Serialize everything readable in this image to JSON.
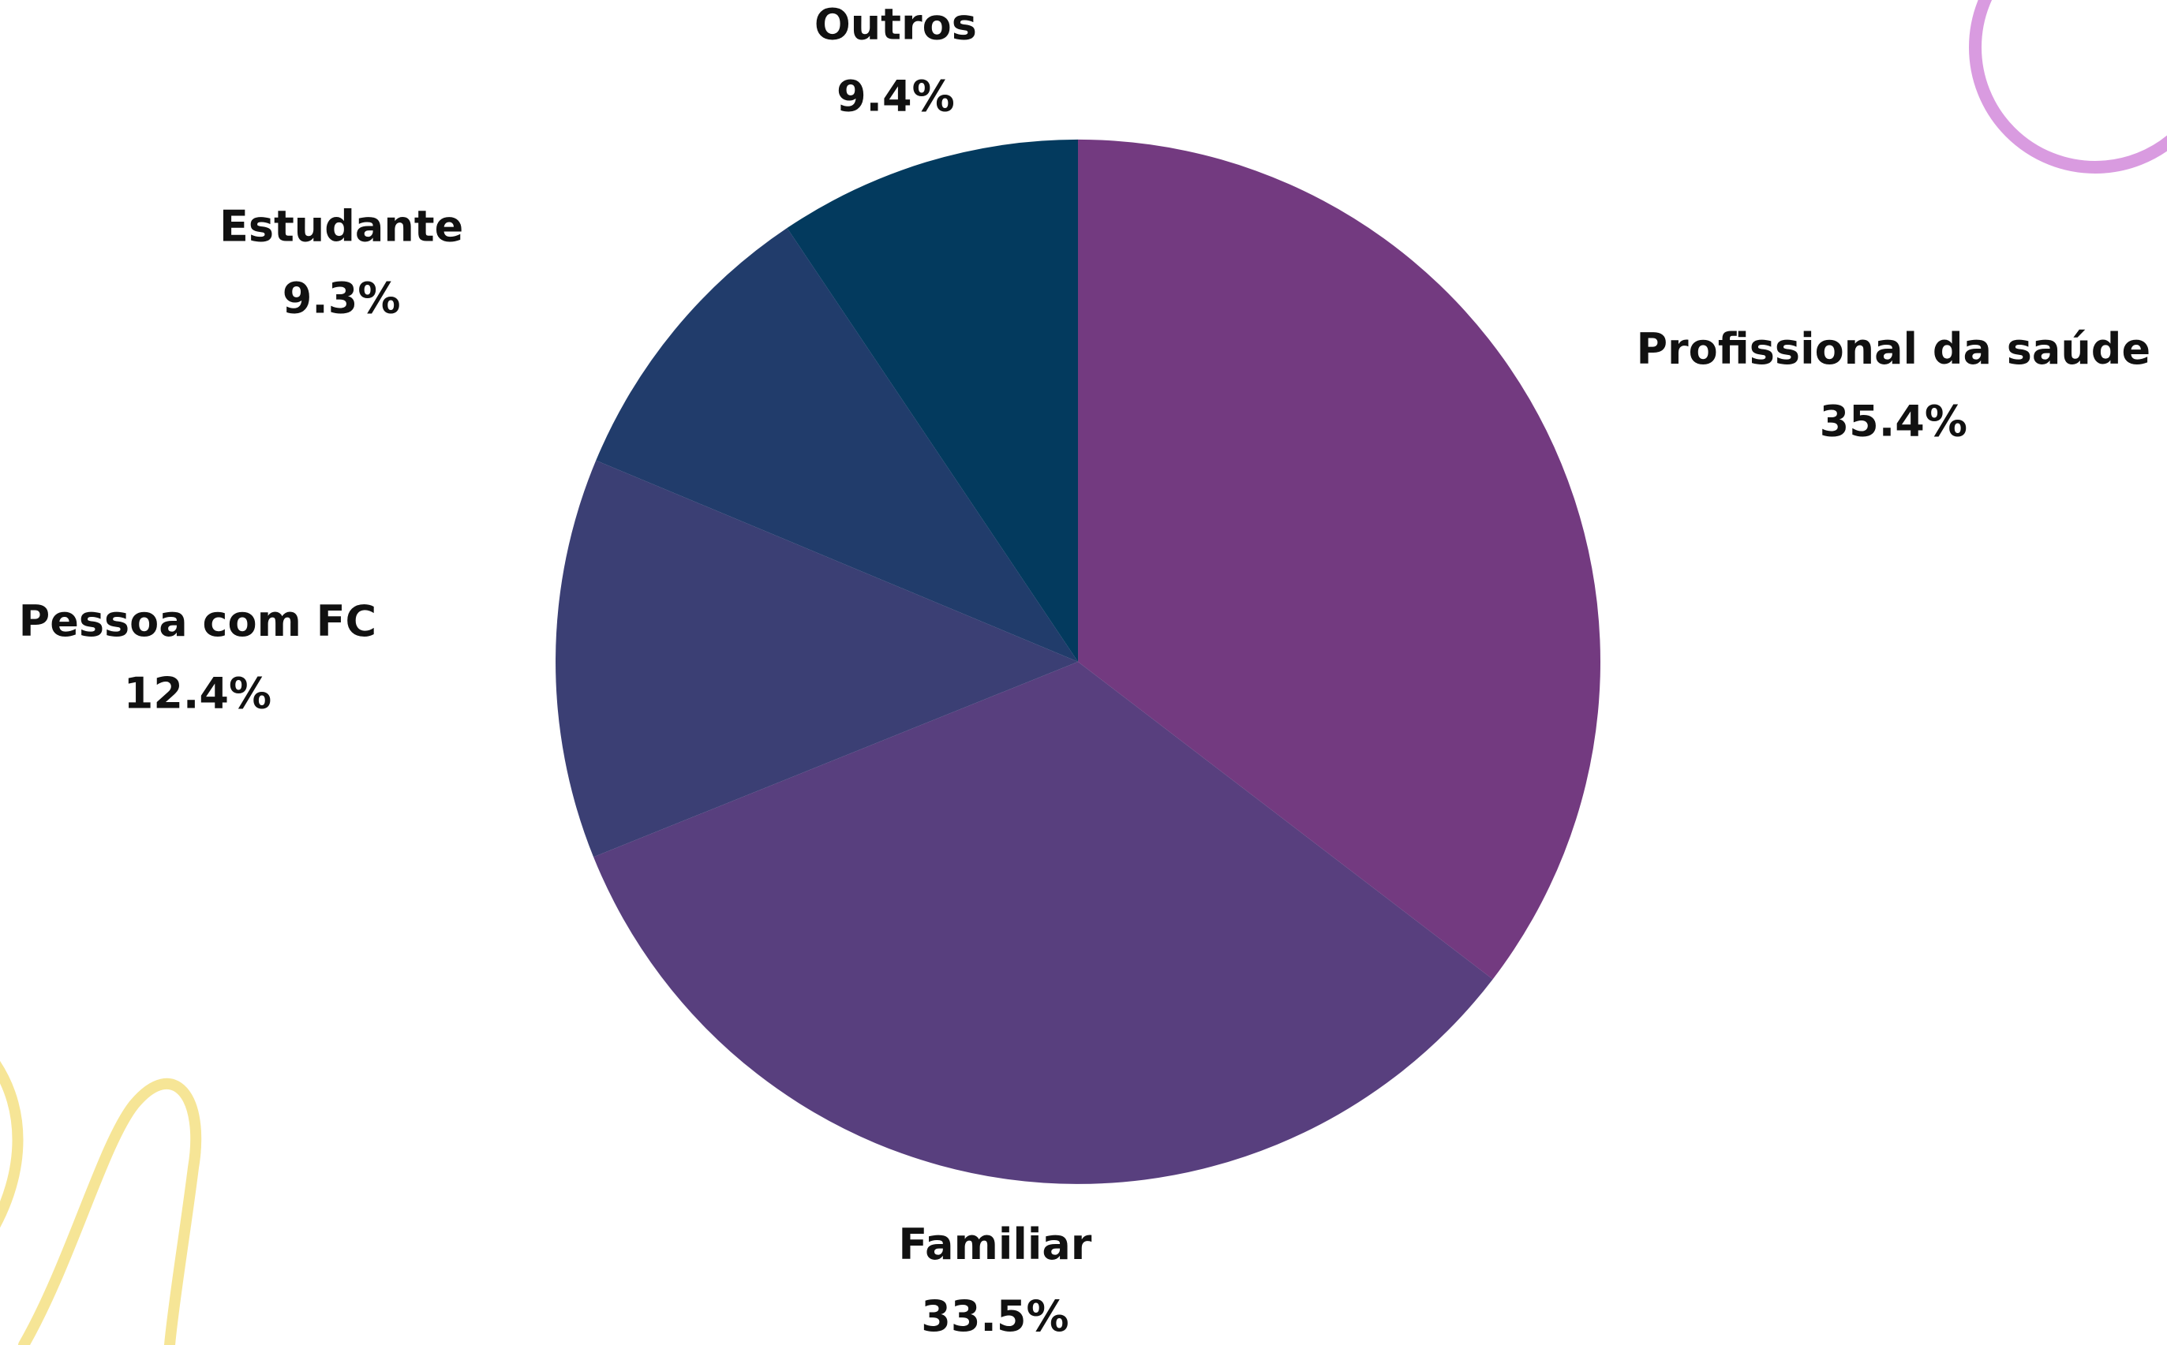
{
  "chart_data": {
    "type": "pie",
    "categories": [
      "Profissional da saúde",
      "Familiar",
      "Pessoa com FC",
      "Estudante",
      "Outros"
    ],
    "values": [
      35.4,
      33.5,
      12.4,
      9.3,
      9.4
    ],
    "value_labels": [
      "35.4%",
      "33.5%",
      "12.4%",
      "9.3%",
      "9.4%"
    ],
    "colors": [
      "#733a80",
      "#583f7e",
      "#3b3f74",
      "#213c6b",
      "#033a5e"
    ]
  }
}
